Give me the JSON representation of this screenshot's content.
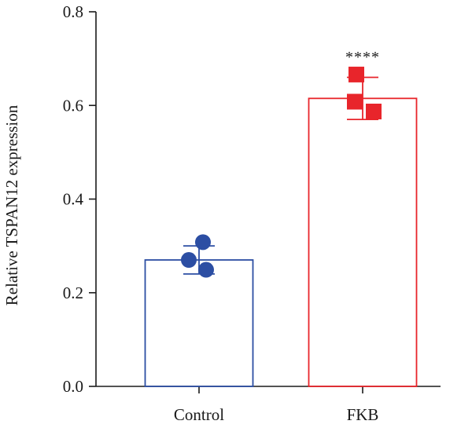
{
  "chart_data": {
    "type": "bar",
    "categories": [
      "Control",
      "FKB"
    ],
    "ylabel": "Relative TSPAN12 expression",
    "xlabel": "",
    "ylim": [
      0,
      0.8
    ],
    "yticks": [
      0.0,
      0.2,
      0.4,
      0.6,
      0.8
    ],
    "ytick_labels": [
      "0.0",
      "0.2",
      "0.4",
      "0.6",
      "0.8"
    ],
    "grid": false,
    "series": [
      {
        "category": "Control",
        "mean": 0.27,
        "error": 0.03,
        "points": [
          0.308,
          0.27,
          0.249
        ],
        "color": "#2c4ea3",
        "marker": "circle"
      },
      {
        "category": "FKB",
        "mean": 0.615,
        "error": 0.045,
        "points": [
          0.666,
          0.608,
          0.587
        ],
        "color": "#e8252b",
        "marker": "square"
      }
    ],
    "annotations": [
      {
        "category": "FKB",
        "text": "****"
      }
    ]
  }
}
